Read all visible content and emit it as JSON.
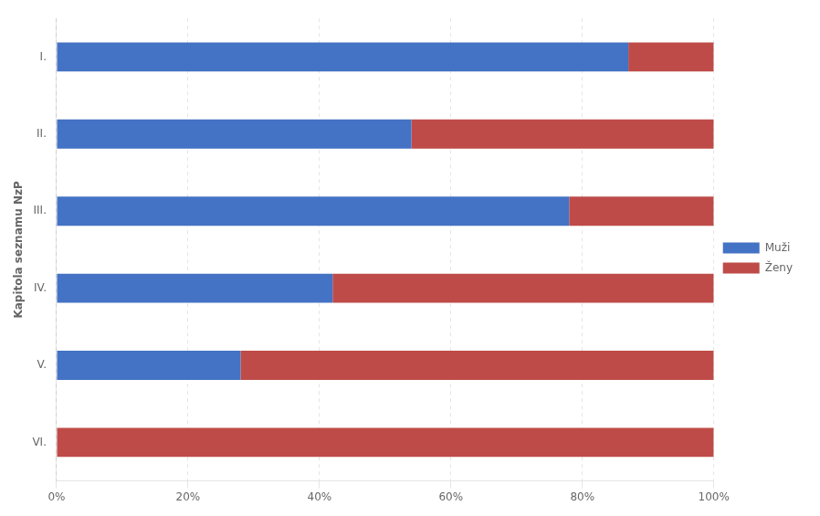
{
  "chart_data": {
    "type": "bar",
    "orientation": "horizontal",
    "stacked": true,
    "categories": [
      "I.",
      "II.",
      "III.",
      "IV.",
      "V.",
      "VI."
    ],
    "series": [
      {
        "name": "Muži",
        "color": "#4472C4",
        "values": [
          87,
          54,
          78,
          42,
          28,
          0
        ]
      },
      {
        "name": "Ženy",
        "color": "#BE4B48",
        "values": [
          13,
          46,
          22,
          58,
          72,
          100
        ]
      }
    ],
    "ylabel": "Kapitola seznamu NzP",
    "xlim": [
      0,
      100
    ],
    "xticks": [
      {
        "value": 0,
        "label": "0%"
      },
      {
        "value": 20,
        "label": "20%"
      },
      {
        "value": 40,
        "label": "40%"
      },
      {
        "value": 60,
        "label": "60%"
      },
      {
        "value": 80,
        "label": "80%"
      },
      {
        "value": 100,
        "label": "100%"
      }
    ],
    "grid": true,
    "legend": "right"
  }
}
